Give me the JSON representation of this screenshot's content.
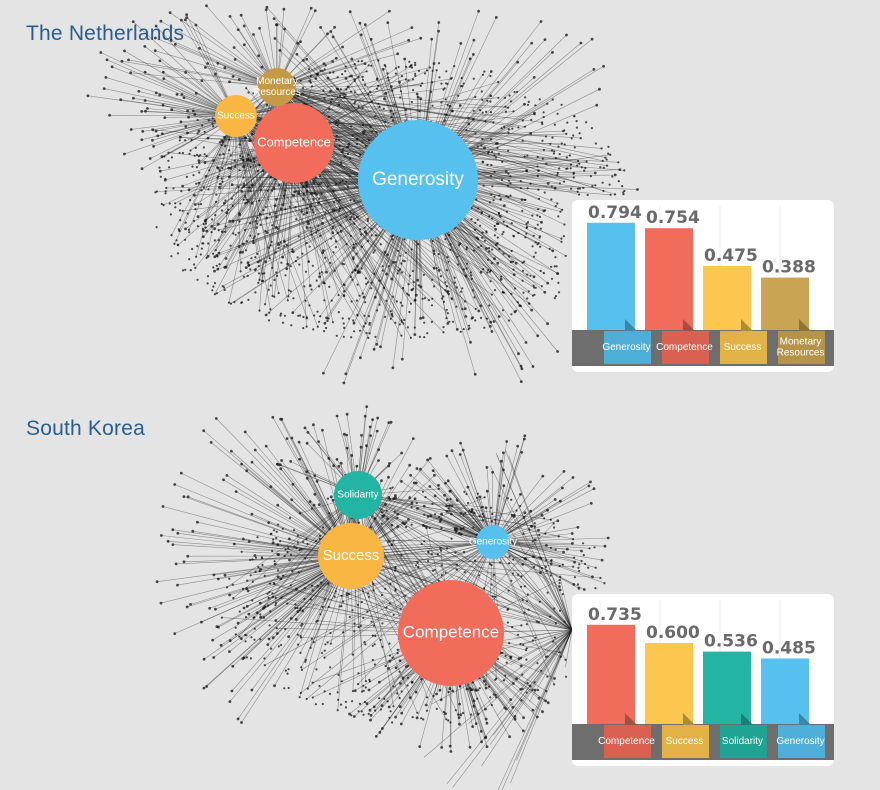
{
  "chart_data": [
    {
      "type": "bar",
      "title": "The Netherlands",
      "categories": [
        "Generosity",
        "Competence",
        "Success",
        "Monetary Resources"
      ],
      "values": [
        0.794,
        0.754,
        0.475,
        0.388
      ],
      "value_labels": [
        "0.794",
        "0.754",
        "0.475",
        "0.388"
      ],
      "colors": [
        "#56c1ef",
        "#f26c5b",
        "#fcc64f",
        "#c9a452"
      ],
      "network_nodes": [
        {
          "label": "Generosity",
          "color": "#56c1ef"
        },
        {
          "label": "Competence",
          "color": "#f26c5b"
        },
        {
          "label": "Success",
          "color": "#f9b642"
        },
        {
          "label": "Monetary Resources",
          "color": "#c69a45"
        }
      ]
    },
    {
      "type": "bar",
      "title": "South Korea",
      "categories": [
        "Competence",
        "Success",
        "Solidarity",
        "Generosity"
      ],
      "values": [
        0.735,
        0.6,
        0.536,
        0.485
      ],
      "value_labels": [
        "0.735",
        "0.600",
        "0.536",
        "0.485"
      ],
      "colors": [
        "#f26c5b",
        "#fcc64f",
        "#22b5a3",
        "#56c1ef"
      ],
      "network_nodes": [
        {
          "label": "Competence",
          "color": "#f26c5b"
        },
        {
          "label": "Success",
          "color": "#f9b642"
        },
        {
          "label": "Solidarity",
          "color": "#22b5a3"
        },
        {
          "label": "Generosity",
          "color": "#56c1ef"
        }
      ]
    }
  ]
}
